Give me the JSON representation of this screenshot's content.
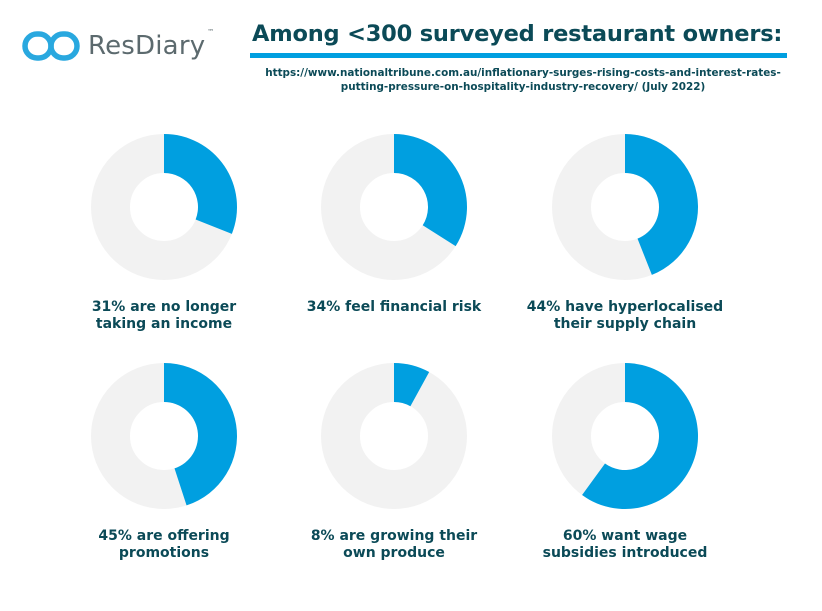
{
  "brand": {
    "name": "ResDiary",
    "trademark": "™",
    "logo_color": "#29a8df"
  },
  "header": {
    "title": "Among <300 surveyed restaurant owners:",
    "source_line1": "https://www.nationaltribune.com.au/inflationary-surges-rising-costs-and-interest-rates-",
    "source_line2": "putting-pressure-on-hospitality-industry-recovery/ (July 2022)"
  },
  "colors": {
    "accent": "#009fe0",
    "track": "#f2f2f2",
    "text": "#0b4a57"
  },
  "chart_data": [
    {
      "type": "pie",
      "style": "donut",
      "value": 31,
      "label_lines": [
        "31% are no longer",
        "taking an income"
      ]
    },
    {
      "type": "pie",
      "style": "donut",
      "value": 34,
      "label_lines": [
        "34% feel financial risk"
      ]
    },
    {
      "type": "pie",
      "style": "donut",
      "value": 44,
      "label_lines": [
        "44% have hyperlocalised",
        "their supply chain"
      ]
    },
    {
      "type": "pie",
      "style": "donut",
      "value": 45,
      "label_lines": [
        "45% are offering",
        "promotions"
      ]
    },
    {
      "type": "pie",
      "style": "donut",
      "value": 8,
      "label_lines": [
        "8% are growing their",
        "own produce"
      ]
    },
    {
      "type": "pie",
      "style": "donut",
      "value": 60,
      "label_lines": [
        "60% want wage",
        "subsidies introduced"
      ]
    }
  ]
}
